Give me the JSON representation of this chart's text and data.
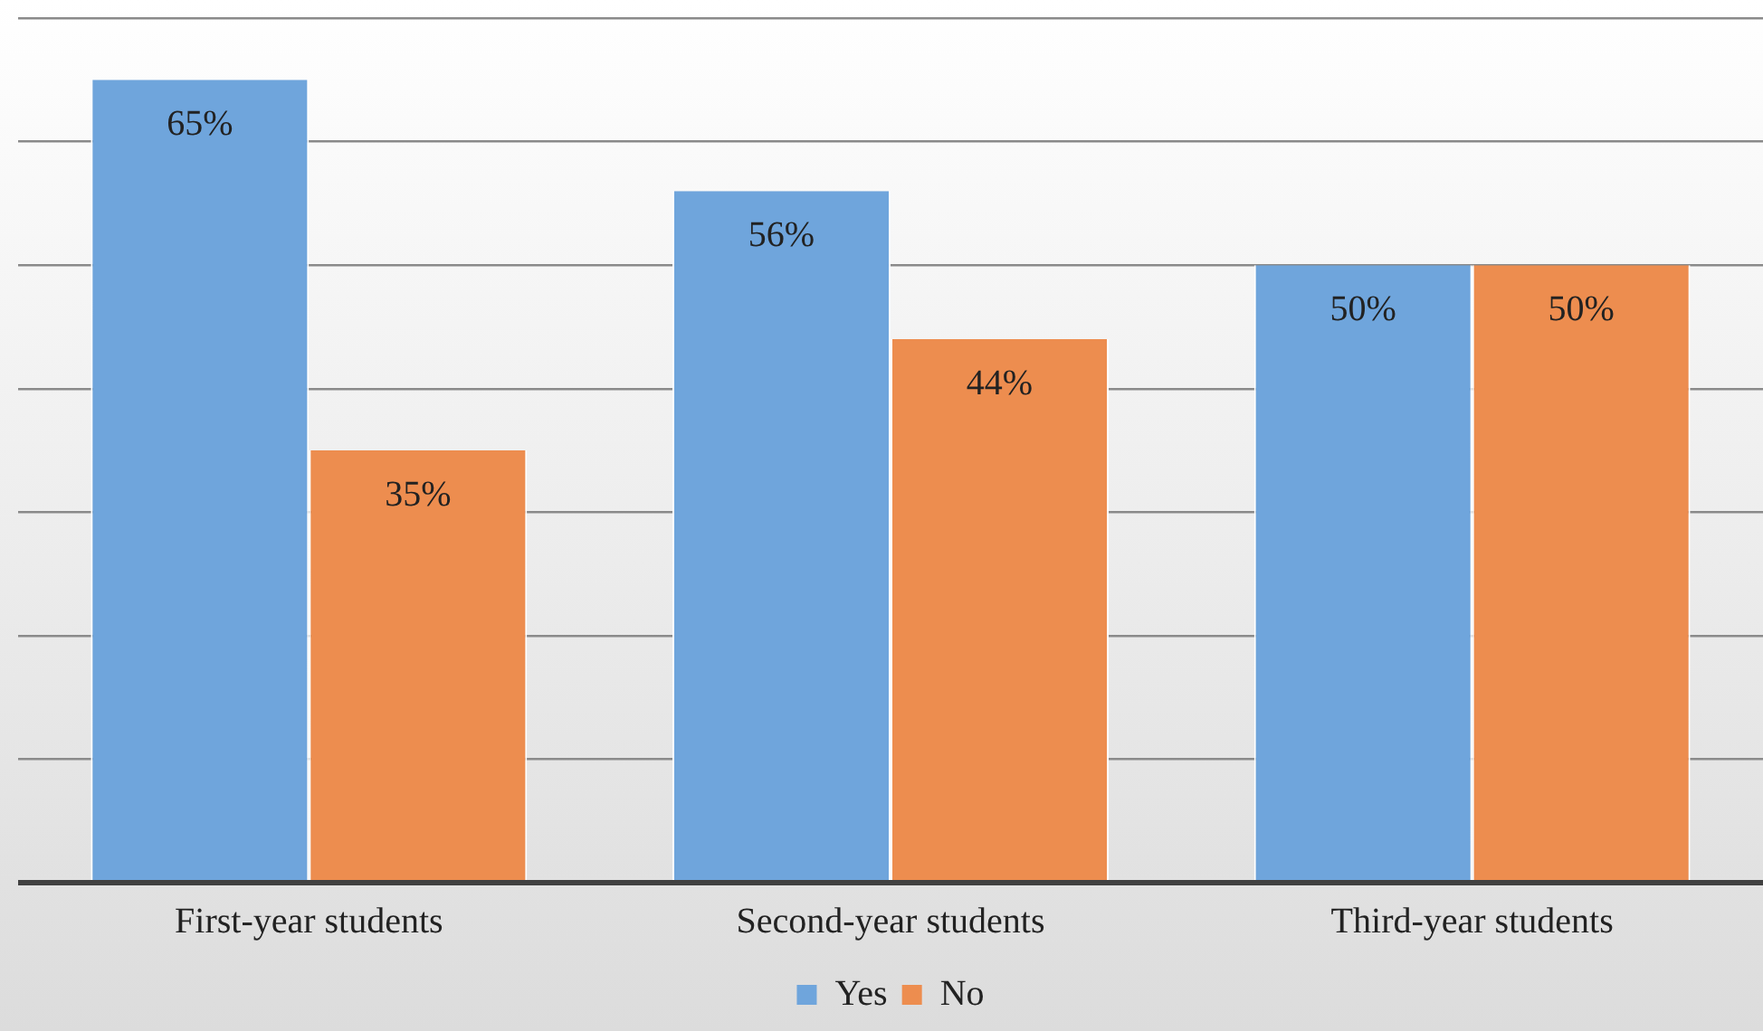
{
  "chart_data": {
    "type": "bar",
    "categories": [
      "First-year students",
      "Second-year students",
      "Third-year students"
    ],
    "series": [
      {
        "name": "Yes",
        "color": "#6fa5dc",
        "values": [
          65,
          56,
          50
        ],
        "value_labels": [
          "65%",
          "56%",
          "50%"
        ]
      },
      {
        "name": "No",
        "color": "#ed8d4f",
        "values": [
          35,
          44,
          50
        ],
        "value_labels": [
          "35%",
          "44%",
          "50%"
        ]
      }
    ],
    "tick_labels": "x",
    "grid": "y",
    "legend": "bottom"
  }
}
